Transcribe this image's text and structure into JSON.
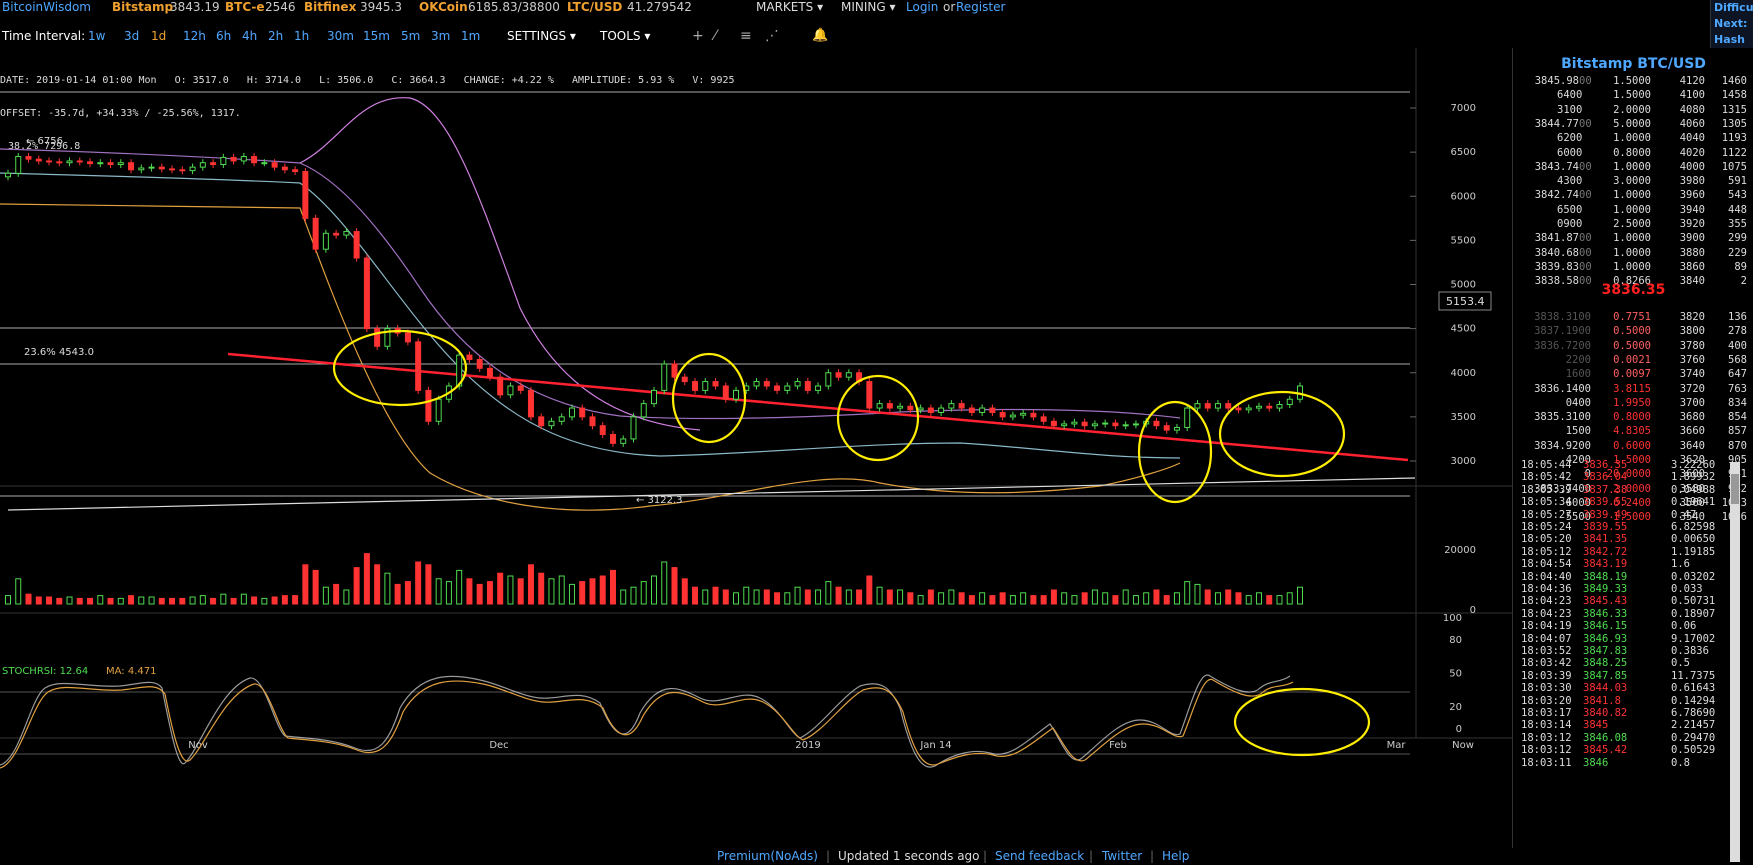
{
  "topbar": {
    "brand": "BitcoinWisdom",
    "tickers": [
      {
        "exchange": "Bitstamp",
        "price": "3843.19"
      },
      {
        "exchange": "BTC-e",
        "price": "2546"
      },
      {
        "exchange": "Bitfinex",
        "price": "3945.3"
      },
      {
        "exchange": "OKCoin",
        "price": "6185.83/38800"
      },
      {
        "exchange": "LTC/USD",
        "price": "41.279542"
      }
    ],
    "menus": [
      "MARKETS",
      "MINING"
    ],
    "login": "Login",
    "or": "or",
    "register": "Register",
    "corner_lines": [
      "Difficu",
      "Next:",
      "Hash R"
    ]
  },
  "toolbar": {
    "label": "Time Interval:",
    "intervals": [
      "1w",
      "3d",
      "1d",
      "12h",
      "6h",
      "4h",
      "2h",
      "1h",
      "30m",
      "15m",
      "5m",
      "3m",
      "1m"
    ],
    "active_interval": "1d",
    "settings": "SETTINGS",
    "tools": "TOOLS"
  },
  "info": {
    "line1": "DATE: 2019-01-14 01:00 Mon   O: 3517.0   H: 3714.0   L: 3506.0   C: 3664.3   CHANGE: +4.22 %   AMPLITUDE: 5.93 %   V: 9925",
    "line2": "OFFSET: -35.7d, +34.33% / -25.56%, 1317.",
    "fib1": "38.2% 7296.8",
    "fib2": "23.6% 4543.0"
  },
  "chart_data": {
    "type": "candlestick",
    "price_axis": {
      "ticks": [
        3000,
        3500,
        4000,
        4500,
        5000,
        5500,
        6000,
        6500,
        7000
      ],
      "ylim": [
        2900,
        7400
      ]
    },
    "volume_axis": {
      "ticks": [
        0,
        20000
      ]
    },
    "stochrsi_axis": {
      "ticks": [
        0,
        20,
        50,
        80,
        100
      ]
    },
    "x_labels": [
      "Nov",
      "Dec",
      "2019",
      "Jan 14",
      "Feb",
      "Mar",
      "Now"
    ],
    "annotations": {
      "high_label": "← 6756",
      "low_label": "← 3122.3",
      "cursor_price": "5153.4"
    },
    "stochrsi_label": "STOCHRSI: 12.64",
    "ma_label": "MA: 4.471",
    "close": [
      6260,
      6450,
      6420,
      6400,
      6390,
      6380,
      6400,
      6390,
      6370,
      6380,
      6360,
      6380,
      6300,
      6320,
      6330,
      6310,
      6300,
      6290,
      6330,
      6380,
      6360,
      6440,
      6400,
      6450,
      6380,
      6380,
      6330,
      6300,
      6280,
      5750,
      5400,
      5580,
      5560,
      5600,
      5300,
      4500,
      4300,
      4500,
      4450,
      4350,
      3800,
      3450,
      3700,
      3850,
      4200,
      4150,
      4050,
      3950,
      3750,
      3850,
      3800,
      3500,
      3400,
      3450,
      3500,
      3600,
      3500,
      3400,
      3300,
      3200,
      3250,
      3500,
      3650,
      3800,
      4100,
      3950,
      3900,
      3800,
      3900,
      3850,
      3700,
      3800,
      3850,
      3900,
      3850,
      3800,
      3850,
      3900,
      3800,
      3850,
      4000,
      3950,
      4000,
      3900,
      3600,
      3650,
      3600,
      3620,
      3580,
      3600,
      3550,
      3600,
      3650,
      3600,
      3550,
      3600,
      3550,
      3500,
      3520,
      3540,
      3500,
      3450,
      3400,
      3420,
      3440,
      3400,
      3420,
      3430,
      3400,
      3410,
      3420,
      3450,
      3400,
      3350,
      3380,
      3600,
      3650,
      3600,
      3650,
      3600,
      3580,
      3600,
      3620,
      3600,
      3640,
      3700,
      3850
    ],
    "volume": [
      3000,
      9000,
      3500,
      2500,
      2500,
      2000,
      2500,
      2000,
      2000,
      3000,
      2000,
      2000,
      3000,
      2500,
      2500,
      2000,
      2000,
      2000,
      2500,
      3000,
      2000,
      3500,
      2000,
      3500,
      2500,
      2000,
      2500,
      3000,
      3000,
      14000,
      12000,
      6000,
      7000,
      5000,
      13000,
      18000,
      14000,
      11000,
      7000,
      8000,
      15000,
      14000,
      9000,
      8000,
      12000,
      9000,
      7000,
      8000,
      11000,
      10000,
      9000,
      14000,
      11000,
      9000,
      10000,
      7000,
      8000,
      9000,
      10000,
      12000,
      5000,
      6000,
      8000,
      10000,
      15000,
      13000,
      9000,
      6000,
      5000,
      6000,
      5000,
      4000,
      6000,
      5000,
      5000,
      4000,
      4000,
      6000,
      5000,
      5000,
      8000,
      6000,
      5000,
      5000,
      10000,
      6000,
      5000,
      5000,
      4000,
      3000,
      5000,
      4000,
      5000,
      4000,
      3000,
      4000,
      3000,
      4000,
      3000,
      4000,
      3000,
      3000,
      5000,
      4000,
      3000,
      4000,
      5000,
      4000,
      3000,
      5000,
      3000,
      4000,
      5000,
      3000,
      4000,
      8000,
      7000,
      5000,
      4000,
      5000,
      4000,
      3000,
      4000,
      3000,
      3000,
      4000,
      6000
    ]
  },
  "orderbook": {
    "title": "Bitstamp BTC/USD",
    "asks": [
      [
        "3845.98",
        "00",
        "1.5000",
        "4120",
        "1460"
      ],
      [
        "",
        "6400",
        "1.5000",
        "4100",
        "1458"
      ],
      [
        "",
        "3100",
        "2.0000",
        "4080",
        "1315"
      ],
      [
        "3844.77",
        "00",
        "5.0000",
        "4060",
        "1305"
      ],
      [
        "",
        "6200",
        "1.0000",
        "4040",
        "1193"
      ],
      [
        "",
        "6000",
        "0.8000",
        "4020",
        "1122"
      ],
      [
        "3843.74",
        "00",
        "1.0000",
        "4000",
        "1075"
      ],
      [
        "",
        "4300",
        "3.0000",
        "3980",
        "591"
      ],
      [
        "3842.74",
        "00",
        "1.0000",
        "3960",
        "543"
      ],
      [
        "",
        "6500",
        "1.0000",
        "3940",
        "448"
      ],
      [
        "",
        "0900",
        "2.5000",
        "3920",
        "355"
      ],
      [
        "3841.87",
        "00",
        "1.0000",
        "3900",
        "299"
      ],
      [
        "3840.68",
        "00",
        "1.0000",
        "3880",
        "229"
      ],
      [
        "3839.83",
        "00",
        "1.0000",
        "3860",
        "89"
      ],
      [
        "3838.58",
        "00",
        "0.8266",
        "3840",
        "2"
      ]
    ],
    "mid_price": "3836.35",
    "bids": [
      [
        "3838.3100",
        "0.7751",
        "3820",
        "136"
      ],
      [
        "3837.1900",
        "0.5000",
        "3800",
        "278"
      ],
      [
        "3836.7200",
        "0.5000",
        "3780",
        "400"
      ],
      [
        "2200",
        "0.0021",
        "3760",
        "568"
      ],
      [
        "1600",
        "0.0097",
        "3740",
        "647"
      ],
      [
        "3836.1400",
        "3.8115",
        "3720",
        "763"
      ],
      [
        "0400",
        "1.9950",
        "3700",
        "834"
      ],
      [
        "3835.3100",
        "0.8000",
        "3680",
        "854"
      ],
      [
        "1500",
        "4.8305",
        "3660",
        "857"
      ],
      [
        "3834.9200",
        "0.6000",
        "3640",
        "870"
      ],
      [
        "4200",
        "1.5000",
        "3620",
        "905"
      ],
      [
        "0",
        "20.0000",
        "3600",
        "941"
      ],
      [
        "3833.7400",
        "2.0000",
        "3580",
        "942"
      ],
      [
        "6000",
        "6.2400",
        "3560",
        "1053"
      ],
      [
        "5500",
        "1.5000",
        "3540",
        "1066"
      ]
    ]
  },
  "trades": [
    [
      "18:05:44",
      "3836.35",
      "3.22260",
      "dn"
    ],
    [
      "18:05:42",
      "3836.04",
      "1.89932",
      "dn"
    ],
    [
      "18:05:39",
      "3837.38",
      "0.04988",
      "dn"
    ],
    [
      "18:05:34",
      "3839.55",
      "0.19641",
      "dn"
    ],
    [
      "18:05:27",
      "3839.49",
      "0.47",
      "dn"
    ],
    [
      "18:05:24",
      "3839.55",
      "6.82598",
      "dn"
    ],
    [
      "18:05:20",
      "3841.35",
      "0.00650",
      "dn"
    ],
    [
      "18:05:12",
      "3842.72",
      "1.19185",
      "dn"
    ],
    [
      "18:04:54",
      "3843.19",
      "1.6",
      "dn"
    ],
    [
      "18:04:40",
      "3848.19",
      "0.03202",
      "up"
    ],
    [
      "18:04:36",
      "3849.33",
      "0.033",
      "up"
    ],
    [
      "18:04:23",
      "3845.43",
      "0.50731",
      "dn"
    ],
    [
      "18:04:23",
      "3846.33",
      "0.18907",
      "up"
    ],
    [
      "18:04:19",
      "3846.15",
      "0.06",
      "up"
    ],
    [
      "18:04:07",
      "3846.93",
      "9.17002",
      "up"
    ],
    [
      "18:03:52",
      "3847.83",
      "0.3836",
      "up"
    ],
    [
      "18:03:42",
      "3848.25",
      "0.5",
      "up"
    ],
    [
      "18:03:39",
      "3847.85",
      "11.7375",
      "up"
    ],
    [
      "18:03:30",
      "3844.03",
      "0.61643",
      "dn"
    ],
    [
      "18:03:20",
      "3841.8",
      "0.14294",
      "dn"
    ],
    [
      "18:03:17",
      "3840.82",
      "6.78690",
      "dn"
    ],
    [
      "18:03:14",
      "3845",
      "2.21457",
      "dn"
    ],
    [
      "18:03:12",
      "3846.08",
      "0.29470",
      "up"
    ],
    [
      "18:03:12",
      "3845.42",
      "0.50529",
      "dn"
    ],
    [
      "18:03:11",
      "3846",
      "0.8",
      "up"
    ]
  ],
  "footer": {
    "premium": "Premium(NoAds)",
    "updated": "Updated 1 seconds ago",
    "feedback": "Send feedback",
    "twitter": "Twitter",
    "help": "Help"
  },
  "colors": {
    "up": "#4fdc4f",
    "down": "#ff3333",
    "link": "#4fa8ff",
    "brand": "#f0a030"
  }
}
